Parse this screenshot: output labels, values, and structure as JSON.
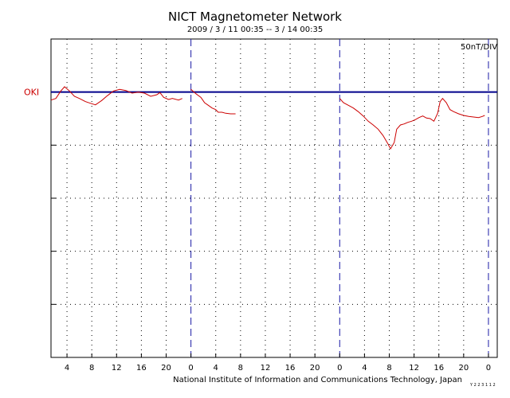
{
  "header": {
    "title": "NICT Magnetometer Network",
    "subtitle": "2009 / 3 / 11   00:35 --  3 / 14   00:35"
  },
  "footer": {
    "credit": "National Institute of Information and Communications Technology, Japan",
    "small_mark": "Y 2 2 3 1 1 2"
  },
  "colors": {
    "trace": "#cc0000",
    "baseline": "#00008b",
    "day_divider": "#1a1aa6",
    "grid": "#000000",
    "station_label": "#cc0000"
  },
  "chart_data": {
    "type": "line",
    "title": "NICT Magnetometer Network",
    "subtitle": "2009 / 3 / 11   00:35 --  3 / 14   00:35",
    "scale_label": "50nT/DIV",
    "x_unit": "hours UT (day boundaries at 0)",
    "xlim": [
      1.42,
      73.42
    ],
    "x_ticks": [
      4,
      8,
      12,
      16,
      20,
      24,
      28,
      32,
      36,
      40,
      44,
      48,
      52,
      56,
      60,
      64,
      68,
      72
    ],
    "x_tick_labels": [
      "4",
      "8",
      "12",
      "16",
      "20",
      "0",
      "4",
      "8",
      "12",
      "16",
      "20",
      "0",
      "4",
      "8",
      "12",
      "16",
      "20",
      "0"
    ],
    "day_dividers": [
      24,
      48,
      72
    ],
    "ylim": [
      -5,
      1
    ],
    "y_unit": "divisions of 50 nT relative to station baseline",
    "grid": true,
    "series": [
      {
        "name": "OKI",
        "baseline": 0,
        "segments": [
          [
            [
              1.42,
              -0.15
            ],
            [
              2.2,
              -0.12
            ],
            [
              3.0,
              0.02
            ],
            [
              3.6,
              0.1
            ],
            [
              4.4,
              0.02
            ],
            [
              5.2,
              -0.08
            ],
            [
              6.0,
              -0.12
            ],
            [
              7.0,
              -0.18
            ],
            [
              8.0,
              -0.22
            ],
            [
              8.6,
              -0.24
            ],
            [
              9.6,
              -0.16
            ],
            [
              10.5,
              -0.07
            ],
            [
              11.5,
              0.02
            ],
            [
              12.5,
              0.05
            ],
            [
              13.5,
              0.03
            ],
            [
              14.5,
              -0.02
            ],
            [
              15.5,
              0.0
            ],
            [
              16.5,
              -0.02
            ],
            [
              17.5,
              -0.08
            ],
            [
              18.5,
              -0.05
            ],
            [
              19.0,
              -0.01
            ],
            [
              19.6,
              -0.1
            ],
            [
              20.4,
              -0.14
            ],
            [
              21.0,
              -0.12
            ],
            [
              22.0,
              -0.15
            ],
            [
              22.6,
              -0.12
            ]
          ],
          [
            [
              24.0,
              0.05
            ],
            [
              24.8,
              -0.03
            ],
            [
              25.6,
              -0.1
            ],
            [
              26.2,
              -0.2
            ],
            [
              26.8,
              -0.25
            ],
            [
              27.4,
              -0.3
            ],
            [
              28.0,
              -0.33
            ],
            [
              28.4,
              -0.38
            ],
            [
              29.0,
              -0.38
            ],
            [
              29.6,
              -0.4
            ],
            [
              30.4,
              -0.41
            ],
            [
              31.2,
              -0.41
            ]
          ],
          [
            [
              48.0,
              -0.12
            ],
            [
              48.6,
              -0.2
            ],
            [
              49.4,
              -0.25
            ],
            [
              50.2,
              -0.3
            ],
            [
              51.0,
              -0.37
            ],
            [
              51.8,
              -0.45
            ],
            [
              52.6,
              -0.55
            ],
            [
              53.4,
              -0.62
            ],
            [
              54.2,
              -0.7
            ],
            [
              55.0,
              -0.82
            ],
            [
              55.8,
              -0.98
            ],
            [
              56.2,
              -1.07
            ],
            [
              56.8,
              -0.95
            ],
            [
              57.2,
              -0.7
            ],
            [
              57.8,
              -0.62
            ],
            [
              58.4,
              -0.6
            ],
            [
              59.0,
              -0.57
            ],
            [
              59.6,
              -0.55
            ],
            [
              60.2,
              -0.52
            ],
            [
              60.8,
              -0.48
            ],
            [
              61.4,
              -0.45
            ],
            [
              62.0,
              -0.49
            ],
            [
              62.6,
              -0.5
            ],
            [
              63.2,
              -0.55
            ],
            [
              63.8,
              -0.4
            ],
            [
              64.2,
              -0.18
            ],
            [
              64.6,
              -0.12
            ],
            [
              65.2,
              -0.2
            ],
            [
              65.8,
              -0.33
            ],
            [
              66.4,
              -0.37
            ],
            [
              67.2,
              -0.41
            ],
            [
              68.0,
              -0.44
            ],
            [
              68.8,
              -0.46
            ],
            [
              69.6,
              -0.47
            ],
            [
              70.4,
              -0.48
            ],
            [
              71.0,
              -0.46
            ],
            [
              71.4,
              -0.44
            ]
          ]
        ]
      }
    ]
  }
}
